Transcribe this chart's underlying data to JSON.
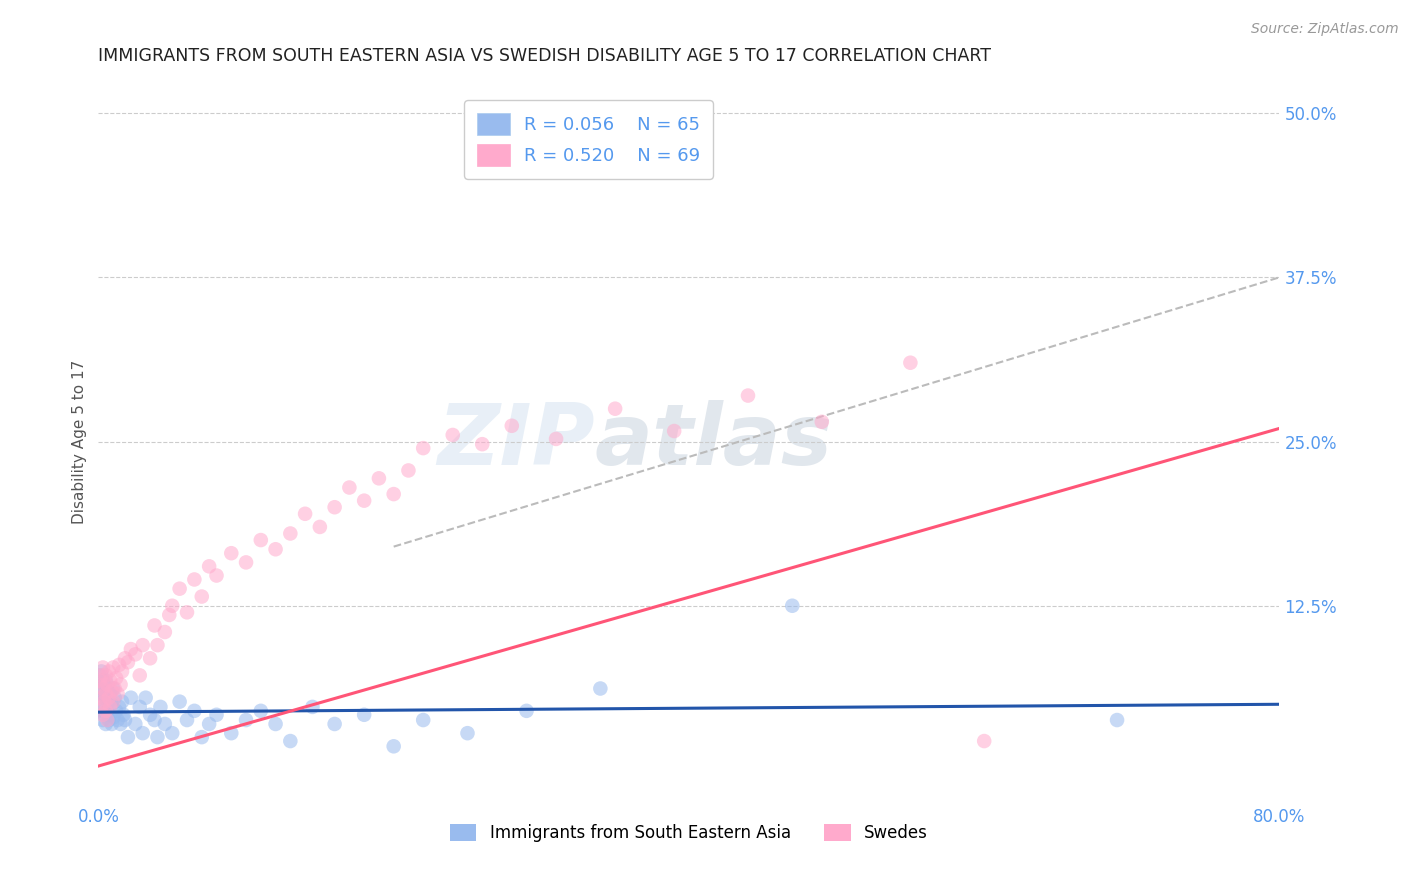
{
  "title": "IMMIGRANTS FROM SOUTH EASTERN ASIA VS SWEDISH DISABILITY AGE 5 TO 17 CORRELATION CHART",
  "source": "Source: ZipAtlas.com",
  "ylabel": "Disability Age 5 to 17",
  "xlim": [
    0.0,
    0.8
  ],
  "ylim": [
    -0.025,
    0.525
  ],
  "ytick_right": [
    0.0,
    0.125,
    0.25,
    0.375,
    0.5
  ],
  "ytick_right_labels": [
    "",
    "12.5%",
    "25.0%",
    "37.5%",
    "50.0%"
  ],
  "legend_r1": "R = 0.056",
  "legend_n1": "N = 65",
  "legend_r2": "R = 0.520",
  "legend_n2": "N = 69",
  "legend_label1": "Immigrants from South Eastern Asia",
  "legend_label2": "Swedes",
  "color_blue": "#99BBEE",
  "color_pink": "#FFAACC",
  "color_line_blue": "#2255AA",
  "color_line_pink": "#FF5577",
  "color_dashed": "#BBBBBB",
  "title_color": "#222222",
  "axis_label_color": "#5599EE",
  "watermark_zip": "ZIP",
  "watermark_atlas": "atlas",
  "background_color": "#FFFFFF",
  "grid_color": "#CCCCCC",
  "blue_trend_x": [
    0.0,
    0.8
  ],
  "blue_trend_y": [
    0.044,
    0.05
  ],
  "pink_trend_x": [
    0.0,
    0.8
  ],
  "pink_trend_y": [
    0.003,
    0.26
  ],
  "dash_trend_x": [
    0.2,
    0.8
  ],
  "dash_trend_y": [
    0.17,
    0.375
  ],
  "blue_scatter_x": [
    0.001,
    0.001,
    0.002,
    0.002,
    0.002,
    0.003,
    0.003,
    0.003,
    0.004,
    0.004,
    0.004,
    0.005,
    0.005,
    0.005,
    0.006,
    0.006,
    0.007,
    0.007,
    0.008,
    0.008,
    0.009,
    0.009,
    0.01,
    0.01,
    0.011,
    0.012,
    0.013,
    0.014,
    0.015,
    0.016,
    0.017,
    0.018,
    0.02,
    0.022,
    0.025,
    0.028,
    0.03,
    0.032,
    0.035,
    0.038,
    0.04,
    0.042,
    0.045,
    0.05,
    0.055,
    0.06,
    0.065,
    0.07,
    0.075,
    0.08,
    0.09,
    0.1,
    0.11,
    0.12,
    0.13,
    0.145,
    0.16,
    0.18,
    0.2,
    0.22,
    0.25,
    0.29,
    0.34,
    0.47,
    0.69
  ],
  "blue_scatter_y": [
    0.058,
    0.072,
    0.045,
    0.062,
    0.075,
    0.038,
    0.055,
    0.068,
    0.048,
    0.065,
    0.042,
    0.055,
    0.035,
    0.068,
    0.045,
    0.06,
    0.038,
    0.052,
    0.042,
    0.058,
    0.035,
    0.05,
    0.062,
    0.04,
    0.055,
    0.045,
    0.038,
    0.048,
    0.035,
    0.052,
    0.042,
    0.038,
    0.025,
    0.055,
    0.035,
    0.048,
    0.028,
    0.055,
    0.042,
    0.038,
    0.025,
    0.048,
    0.035,
    0.028,
    0.052,
    0.038,
    0.045,
    0.025,
    0.035,
    0.042,
    0.028,
    0.038,
    0.045,
    0.035,
    0.022,
    0.048,
    0.035,
    0.042,
    0.018,
    0.038,
    0.028,
    0.045,
    0.062,
    0.125,
    0.038
  ],
  "pink_scatter_x": [
    0.001,
    0.001,
    0.002,
    0.002,
    0.003,
    0.003,
    0.003,
    0.004,
    0.004,
    0.005,
    0.005,
    0.005,
    0.006,
    0.006,
    0.007,
    0.007,
    0.008,
    0.008,
    0.009,
    0.01,
    0.01,
    0.011,
    0.012,
    0.013,
    0.014,
    0.015,
    0.016,
    0.018,
    0.02,
    0.022,
    0.025,
    0.028,
    0.03,
    0.035,
    0.038,
    0.04,
    0.045,
    0.048,
    0.05,
    0.055,
    0.06,
    0.065,
    0.07,
    0.075,
    0.08,
    0.09,
    0.1,
    0.11,
    0.12,
    0.13,
    0.14,
    0.15,
    0.16,
    0.17,
    0.18,
    0.19,
    0.2,
    0.21,
    0.22,
    0.24,
    0.26,
    0.28,
    0.31,
    0.35,
    0.39,
    0.44,
    0.49,
    0.55,
    0.6
  ],
  "pink_scatter_y": [
    0.055,
    0.068,
    0.048,
    0.072,
    0.042,
    0.062,
    0.078,
    0.052,
    0.065,
    0.058,
    0.045,
    0.072,
    0.038,
    0.065,
    0.055,
    0.075,
    0.048,
    0.068,
    0.06,
    0.052,
    0.078,
    0.062,
    0.07,
    0.058,
    0.08,
    0.065,
    0.075,
    0.085,
    0.082,
    0.092,
    0.088,
    0.072,
    0.095,
    0.085,
    0.11,
    0.095,
    0.105,
    0.118,
    0.125,
    0.138,
    0.12,
    0.145,
    0.132,
    0.155,
    0.148,
    0.165,
    0.158,
    0.175,
    0.168,
    0.18,
    0.195,
    0.185,
    0.2,
    0.215,
    0.205,
    0.222,
    0.21,
    0.228,
    0.245,
    0.255,
    0.248,
    0.262,
    0.252,
    0.275,
    0.258,
    0.285,
    0.265,
    0.31,
    0.022
  ]
}
